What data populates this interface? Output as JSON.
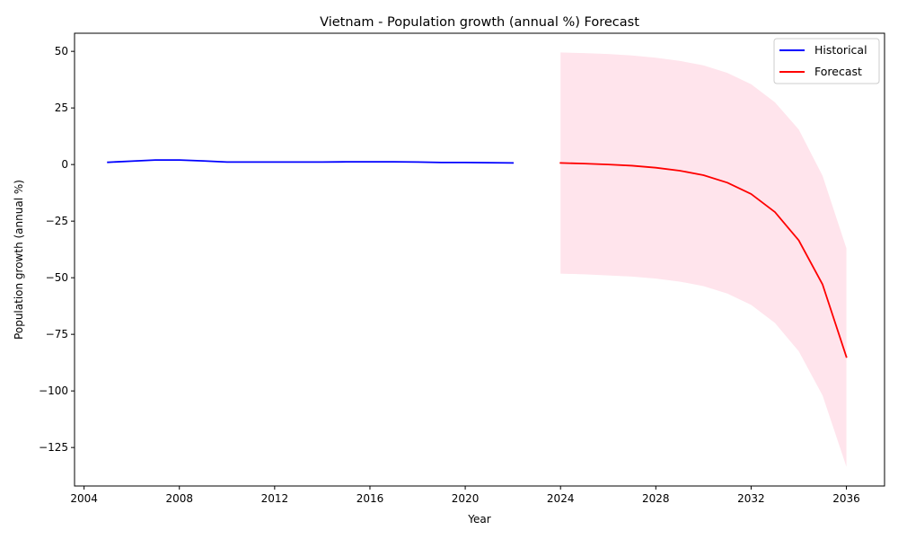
{
  "chart_data": {
    "type": "line",
    "title": "Vietnam - Population growth (annual %) Forecast",
    "xlabel": "Year",
    "ylabel": "Population growth (annual %)",
    "xlim": [
      2003.6,
      2037.6
    ],
    "ylim": [
      -142,
      58
    ],
    "xticks": [
      2004,
      2008,
      2012,
      2016,
      2020,
      2024,
      2028,
      2032,
      2036
    ],
    "yticks": [
      50,
      25,
      0,
      -25,
      -50,
      -75,
      -100,
      -125
    ],
    "grid": false,
    "legend_position": "top-right",
    "series": [
      {
        "name": "Historical",
        "color": "#0000ff",
        "x": [
          2005,
          2006,
          2007,
          2008,
          2009,
          2010,
          2011,
          2012,
          2013,
          2014,
          2015,
          2016,
          2017,
          2018,
          2019,
          2020,
          2021,
          2022
        ],
        "y": [
          1.0,
          1.5,
          2.0,
          2.0,
          1.6,
          1.1,
          1.1,
          1.1,
          1.1,
          1.1,
          1.2,
          1.2,
          1.2,
          1.1,
          0.9,
          0.9,
          0.8,
          0.7
        ]
      },
      {
        "name": "Forecast",
        "color": "#ff0000",
        "x": [
          2024,
          2025,
          2026,
          2027,
          2028,
          2029,
          2030,
          2031,
          2032,
          2033,
          2034,
          2035,
          2036
        ],
        "y": [
          0.7,
          0.4,
          0.0,
          -0.5,
          -1.4,
          -2.7,
          -4.7,
          -8.0,
          -13.0,
          -21.0,
          -33.5,
          -53.0,
          -85.0
        ]
      }
    ],
    "confidence_band": {
      "color": "#ffe4ec",
      "x": [
        2024,
        2025,
        2026,
        2027,
        2028,
        2029,
        2030,
        2031,
        2032,
        2033,
        2034,
        2035,
        2036
      ],
      "upper": [
        49.5,
        49.2,
        48.8,
        48.2,
        47.2,
        45.8,
        43.8,
        40.5,
        35.5,
        27.5,
        15.5,
        -5.0,
        -37.0
      ],
      "lower": [
        -48.2,
        -48.5,
        -49.0,
        -49.5,
        -50.4,
        -51.7,
        -53.7,
        -57.0,
        -62.0,
        -70.0,
        -82.5,
        -102.0,
        -133.5
      ]
    }
  }
}
